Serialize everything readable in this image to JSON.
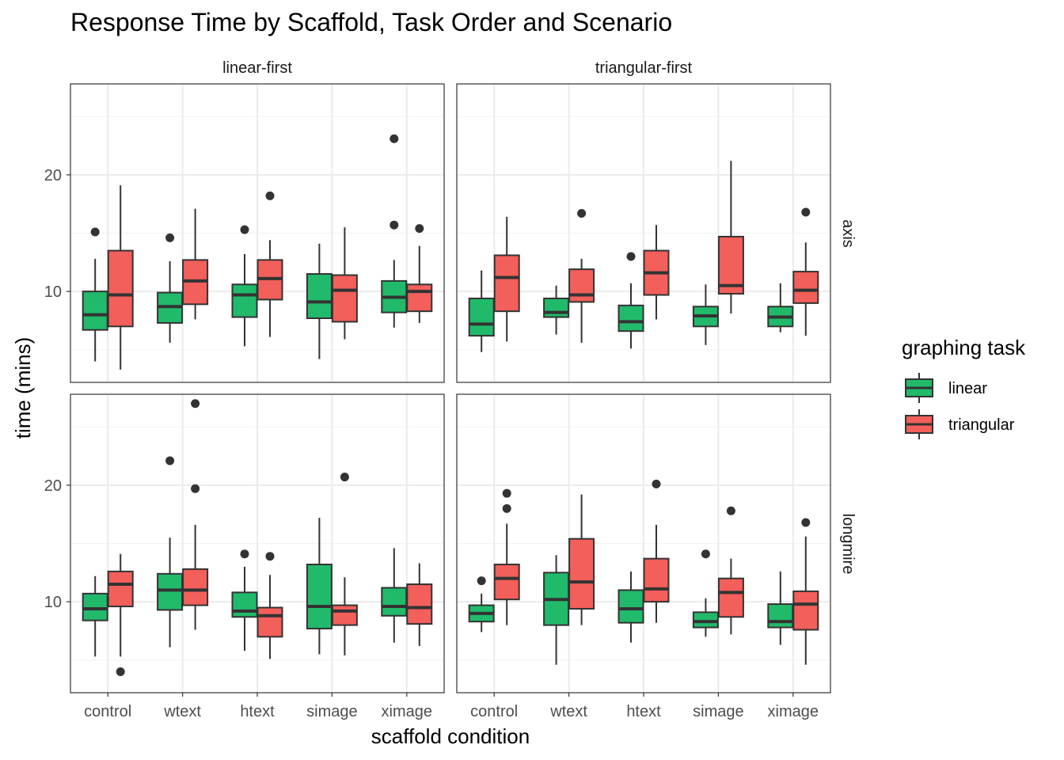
{
  "chart_data": {
    "type": "boxplot",
    "title": "Response Time by Scaffold, Task Order and Scenario",
    "xlabel": "scaffold condition",
    "ylabel": "time (mins)",
    "categories": [
      "control",
      "wtext",
      "htext",
      "simage",
      "ximage"
    ],
    "yticks": [
      10,
      20
    ],
    "ylim": [
      2.2,
      27.8
    ],
    "grid": true,
    "legend": {
      "title": "graphing task",
      "position": "right",
      "entries": [
        {
          "name": "linear",
          "color": "#21ba6b"
        },
        {
          "name": "triangular",
          "color": "#f35f5a"
        }
      ]
    },
    "facet_columns": [
      "linear-first",
      "triangular-first"
    ],
    "facet_rows": [
      "axis",
      "longmire"
    ],
    "panels": [
      {
        "col": "linear-first",
        "row": "axis",
        "series": [
          {
            "name": "linear",
            "boxes": [
              {
                "category": "control",
                "min": 4.0,
                "q1": 6.7,
                "median": 8.0,
                "q3": 10.0,
                "max": 12.8,
                "outliers": [
                  15.1
                ]
              },
              {
                "category": "wtext",
                "min": 5.6,
                "q1": 7.3,
                "median": 8.7,
                "q3": 9.9,
                "max": 12.6,
                "outliers": [
                  14.6
                ]
              },
              {
                "category": "htext",
                "min": 5.3,
                "q1": 7.8,
                "median": 9.7,
                "q3": 10.6,
                "max": 13.2,
                "outliers": [
                  15.3
                ]
              },
              {
                "category": "simage",
                "min": 4.2,
                "q1": 7.7,
                "median": 9.1,
                "q3": 11.5,
                "max": 14.1,
                "outliers": []
              },
              {
                "category": "ximage",
                "min": 6.9,
                "q1": 8.2,
                "median": 9.5,
                "q3": 10.9,
                "max": 12.7,
                "outliers": [
                  15.7,
                  23.1
                ]
              }
            ]
          },
          {
            "name": "triangular",
            "boxes": [
              {
                "category": "control",
                "min": 3.3,
                "q1": 7.0,
                "median": 9.7,
                "q3": 13.5,
                "max": 19.1,
                "outliers": []
              },
              {
                "category": "wtext",
                "min": 7.6,
                "q1": 8.9,
                "median": 10.9,
                "q3": 12.7,
                "max": 17.1,
                "outliers": []
              },
              {
                "category": "htext",
                "min": 6.1,
                "q1": 9.3,
                "median": 11.1,
                "q3": 12.7,
                "max": 14.4,
                "outliers": [
                  18.2
                ]
              },
              {
                "category": "simage",
                "min": 5.9,
                "q1": 7.4,
                "median": 10.1,
                "q3": 11.4,
                "max": 15.5,
                "outliers": []
              },
              {
                "category": "ximage",
                "min": 7.3,
                "q1": 8.3,
                "median": 10.0,
                "q3": 10.6,
                "max": 13.9,
                "outliers": [
                  15.4
                ]
              }
            ]
          }
        ]
      },
      {
        "col": "triangular-first",
        "row": "axis",
        "series": [
          {
            "name": "linear",
            "boxes": [
              {
                "category": "control",
                "min": 4.8,
                "q1": 6.2,
                "median": 7.2,
                "q3": 9.4,
                "max": 11.8,
                "outliers": []
              },
              {
                "category": "wtext",
                "min": 6.3,
                "q1": 7.8,
                "median": 8.2,
                "q3": 9.4,
                "max": 10.5,
                "outliers": []
              },
              {
                "category": "htext",
                "min": 5.1,
                "q1": 6.6,
                "median": 7.4,
                "q3": 8.8,
                "max": 10.7,
                "outliers": [
                  13.0
                ]
              },
              {
                "category": "simage",
                "min": 5.4,
                "q1": 7.0,
                "median": 7.9,
                "q3": 8.7,
                "max": 10.6,
                "outliers": []
              },
              {
                "category": "ximage",
                "min": 6.5,
                "q1": 7.0,
                "median": 7.8,
                "q3": 8.7,
                "max": 10.7,
                "outliers": []
              }
            ]
          },
          {
            "name": "triangular",
            "boxes": [
              {
                "category": "control",
                "min": 5.7,
                "q1": 8.3,
                "median": 11.2,
                "q3": 13.1,
                "max": 16.4,
                "outliers": []
              },
              {
                "category": "wtext",
                "min": 5.6,
                "q1": 9.1,
                "median": 9.7,
                "q3": 11.9,
                "max": 12.8,
                "outliers": [
                  16.7
                ]
              },
              {
                "category": "htext",
                "min": 7.6,
                "q1": 9.7,
                "median": 11.6,
                "q3": 13.5,
                "max": 15.7,
                "outliers": []
              },
              {
                "category": "simage",
                "min": 8.1,
                "q1": 9.8,
                "median": 10.5,
                "q3": 14.7,
                "max": 21.2,
                "outliers": []
              },
              {
                "category": "ximage",
                "min": 6.2,
                "q1": 9.0,
                "median": 10.1,
                "q3": 11.7,
                "max": 14.2,
                "outliers": [
                  16.8
                ]
              }
            ]
          }
        ]
      },
      {
        "col": "linear-first",
        "row": "longmire",
        "series": [
          {
            "name": "linear",
            "boxes": [
              {
                "category": "control",
                "min": 5.3,
                "q1": 8.4,
                "median": 9.4,
                "q3": 10.7,
                "max": 12.2,
                "outliers": []
              },
              {
                "category": "wtext",
                "min": 6.1,
                "q1": 9.3,
                "median": 11.0,
                "q3": 12.4,
                "max": 15.5,
                "outliers": [
                  22.1
                ]
              },
              {
                "category": "htext",
                "min": 5.8,
                "q1": 8.7,
                "median": 9.2,
                "q3": 10.8,
                "max": 13.0,
                "outliers": [
                  14.1
                ]
              },
              {
                "category": "simage",
                "min": 5.5,
                "q1": 7.7,
                "median": 9.6,
                "q3": 13.2,
                "max": 17.2,
                "outliers": []
              },
              {
                "category": "ximage",
                "min": 6.5,
                "q1": 8.8,
                "median": 9.6,
                "q3": 11.2,
                "max": 14.6,
                "outliers": []
              }
            ]
          },
          {
            "name": "triangular",
            "boxes": [
              {
                "category": "control",
                "min": 5.3,
                "q1": 9.6,
                "median": 11.5,
                "q3": 12.6,
                "max": 14.1,
                "outliers": [
                  4.0
                ]
              },
              {
                "category": "wtext",
                "min": 7.6,
                "q1": 9.7,
                "median": 11.0,
                "q3": 12.8,
                "max": 16.6,
                "outliers": [
                  19.7,
                  27.0
                ]
              },
              {
                "category": "htext",
                "min": 5.1,
                "q1": 7.0,
                "median": 8.8,
                "q3": 9.5,
                "max": 12.3,
                "outliers": [
                  13.9
                ]
              },
              {
                "category": "simage",
                "min": 5.4,
                "q1": 8.0,
                "median": 9.2,
                "q3": 9.7,
                "max": 12.1,
                "outliers": [
                  20.7
                ]
              },
              {
                "category": "ximage",
                "min": 6.2,
                "q1": 8.1,
                "median": 9.5,
                "q3": 11.5,
                "max": 13.3,
                "outliers": []
              }
            ]
          }
        ]
      },
      {
        "col": "triangular-first",
        "row": "longmire",
        "series": [
          {
            "name": "linear",
            "boxes": [
              {
                "category": "control",
                "min": 7.4,
                "q1": 8.3,
                "median": 9.0,
                "q3": 9.7,
                "max": 10.7,
                "outliers": [
                  11.8
                ]
              },
              {
                "category": "wtext",
                "min": 4.6,
                "q1": 8.0,
                "median": 10.2,
                "q3": 12.5,
                "max": 14.0,
                "outliers": []
              },
              {
                "category": "htext",
                "min": 6.5,
                "q1": 8.2,
                "median": 9.4,
                "q3": 11.0,
                "max": 12.6,
                "outliers": []
              },
              {
                "category": "simage",
                "min": 7.0,
                "q1": 7.8,
                "median": 8.3,
                "q3": 9.1,
                "max": 10.3,
                "outliers": [
                  14.1
                ]
              },
              {
                "category": "ximage",
                "min": 6.3,
                "q1": 7.8,
                "median": 8.3,
                "q3": 9.8,
                "max": 12.6,
                "outliers": []
              }
            ]
          },
          {
            "name": "triangular",
            "boxes": [
              {
                "category": "control",
                "min": 8.0,
                "q1": 10.2,
                "median": 12.0,
                "q3": 13.2,
                "max": 16.7,
                "outliers": [
                  18.0,
                  19.3
                ]
              },
              {
                "category": "wtext",
                "min": 8.0,
                "q1": 9.4,
                "median": 11.7,
                "q3": 15.4,
                "max": 19.2,
                "outliers": []
              },
              {
                "category": "htext",
                "min": 8.2,
                "q1": 10.0,
                "median": 11.1,
                "q3": 13.7,
                "max": 16.6,
                "outliers": [
                  20.1
                ]
              },
              {
                "category": "simage",
                "min": 7.2,
                "q1": 8.7,
                "median": 10.8,
                "q3": 12.0,
                "max": 13.7,
                "outliers": [
                  17.8
                ]
              },
              {
                "category": "ximage",
                "min": 4.6,
                "q1": 7.6,
                "median": 9.8,
                "q3": 10.9,
                "max": 15.6,
                "outliers": [
                  16.8
                ]
              }
            ]
          }
        ]
      }
    ]
  }
}
